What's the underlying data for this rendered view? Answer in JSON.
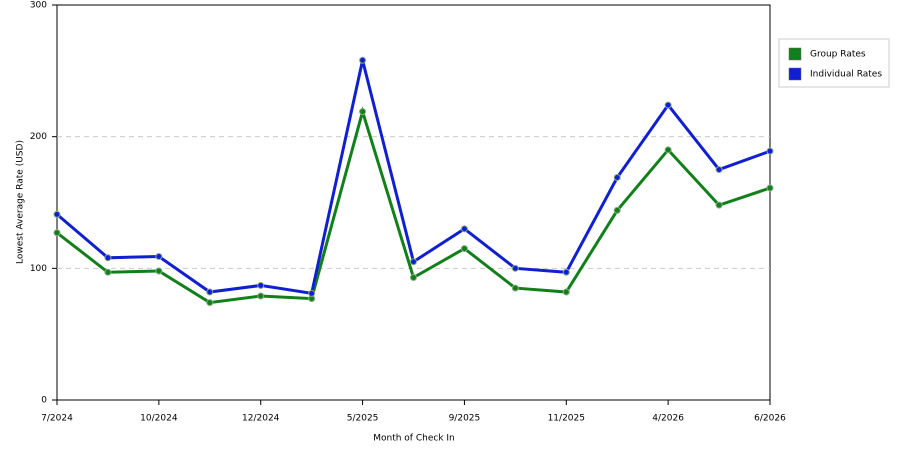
{
  "chart_data": {
    "type": "line",
    "x_label": "Month of Check In",
    "y_label": "Lowest Average Rate (USD)",
    "categories": [
      "7/2024",
      null,
      "10/2024",
      null,
      "12/2024",
      null,
      "5/2025",
      null,
      "9/2025",
      null,
      "11/2025",
      null,
      "4/2026",
      null,
      "6/2026"
    ],
    "series": [
      {
        "name": "Group Rates",
        "color": "#12801a",
        "values": [
          127,
          97,
          98,
          74,
          79,
          77,
          219,
          93,
          115,
          85,
          82,
          144,
          190,
          148,
          161
        ]
      },
      {
        "name": "Individual Rates",
        "color": "#1020d0",
        "values": [
          141,
          108,
          109,
          82,
          87,
          81,
          258,
          105,
          130,
          100,
          97,
          169,
          224,
          175,
          189
        ]
      }
    ],
    "ylim": [
      0,
      300
    ],
    "yticks": [
      0,
      100,
      200,
      300
    ],
    "grid": true,
    "legend": "right"
  }
}
